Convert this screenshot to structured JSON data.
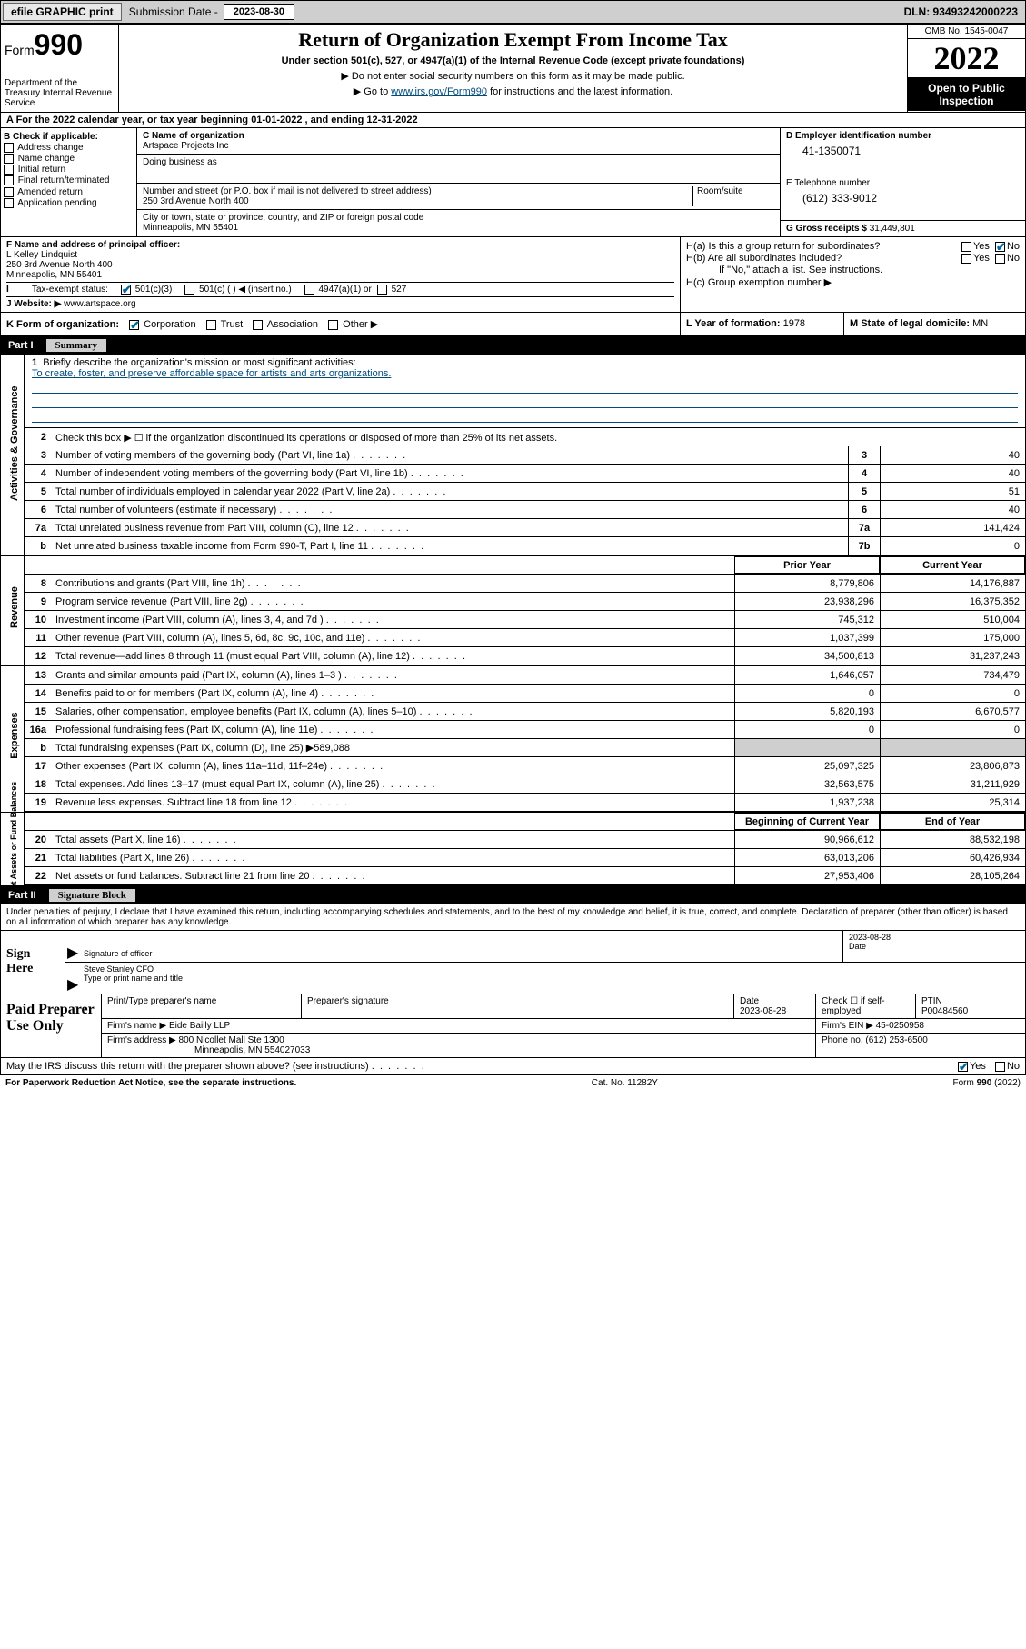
{
  "topbar": {
    "efile": "efile GRAPHIC print",
    "sub_label": "Submission Date -",
    "sub_date": "2023-08-30",
    "dln": "DLN: 93493242000223"
  },
  "header": {
    "form_label": "Form",
    "form_num": "990",
    "dept": "Department of the Treasury Internal Revenue Service",
    "title": "Return of Organization Exempt From Income Tax",
    "subtitle": "Under section 501(c), 527, or 4947(a)(1) of the Internal Revenue Code (except private foundations)",
    "note1": "▶ Do not enter social security numbers on this form as it may be made public.",
    "note2_pre": "▶ Go to ",
    "note2_link": "www.irs.gov/Form990",
    "note2_post": " for instructions and the latest information.",
    "omb": "OMB No. 1545-0047",
    "year": "2022",
    "open": "Open to Public Inspection"
  },
  "row_a": "A For the 2022 calendar year, or tax year beginning 01-01-2022   , and ending 12-31-2022",
  "b": {
    "hdr": "B Check if applicable:",
    "items": [
      "Address change",
      "Name change",
      "Initial return",
      "Final return/terminated",
      "Amended return",
      "Application pending"
    ]
  },
  "c": {
    "label": "C Name of organization",
    "name": "Artspace Projects Inc",
    "dba_label": "Doing business as",
    "addr_label": "Number and street (or P.O. box if mail is not delivered to street address)",
    "room_label": "Room/suite",
    "addr": "250 3rd Avenue North 400",
    "city_label": "City or town, state or province, country, and ZIP or foreign postal code",
    "city": "Minneapolis, MN  55401"
  },
  "d": {
    "label": "D Employer identification number",
    "val": "41-1350071"
  },
  "e": {
    "label": "E Telephone number",
    "val": "(612) 333-9012"
  },
  "g": {
    "label": "G Gross receipts $",
    "val": "31,449,801"
  },
  "f": {
    "label": "F Name and address of principal officer:",
    "name": "L Kelley Lindquist",
    "addr1": "250 3rd Avenue North 400",
    "addr2": "Minneapolis, MN  55401"
  },
  "h": {
    "a_label": "H(a)  Is this a group return for subordinates?",
    "b_label": "H(b)  Are all subordinates included?",
    "b_note": "If \"No,\" attach a list. See instructions.",
    "c_label": "H(c)  Group exemption number ▶"
  },
  "i": {
    "label": "I   Tax-exempt status:",
    "opts": [
      "501(c)(3)",
      "501(c) (  ) ◀ (insert no.)",
      "4947(a)(1) or",
      "527"
    ]
  },
  "j": {
    "label": "J   Website: ▶",
    "val": "www.artspace.org"
  },
  "k": {
    "label": "K Form of organization:",
    "opts": [
      "Corporation",
      "Trust",
      "Association",
      "Other ▶"
    ]
  },
  "l": {
    "label": "L Year of formation:",
    "val": "1978"
  },
  "m": {
    "label": "M State of legal domicile:",
    "val": "MN"
  },
  "parts": {
    "p1_num": "Part I",
    "p1_title": "Summary",
    "p2_num": "Part II",
    "p2_title": "Signature Block"
  },
  "vtabs": {
    "ag": "Activities & Governance",
    "rev": "Revenue",
    "exp": "Expenses",
    "na": "Net Assets or Fund Balances"
  },
  "s1": {
    "q1": "Briefly describe the organization's mission or most significant activities:",
    "mission": "To create, foster, and preserve affordable space for artists and arts organizations.",
    "q2": "Check this box ▶ ☐  if the organization discontinued its operations or disposed of more than 25% of its net assets.",
    "lines": [
      {
        "n": "3",
        "d": "Number of voting members of the governing body (Part VI, line 1a)",
        "b": "3",
        "v": "40"
      },
      {
        "n": "4",
        "d": "Number of independent voting members of the governing body (Part VI, line 1b)",
        "b": "4",
        "v": "40"
      },
      {
        "n": "5",
        "d": "Total number of individuals employed in calendar year 2022 (Part V, line 2a)",
        "b": "5",
        "v": "51"
      },
      {
        "n": "6",
        "d": "Total number of volunteers (estimate if necessary)",
        "b": "6",
        "v": "40"
      },
      {
        "n": "7a",
        "d": "Total unrelated business revenue from Part VIII, column (C), line 12",
        "b": "7a",
        "v": "141,424"
      },
      {
        "n": "b",
        "d": "Net unrelated business taxable income from Form 990-T, Part I, line 11",
        "b": "7b",
        "v": "0"
      }
    ],
    "col_prior": "Prior Year",
    "col_curr": "Current Year",
    "rev": [
      {
        "n": "8",
        "d": "Contributions and grants (Part VIII, line 1h)",
        "p": "8,779,806",
        "c": "14,176,887"
      },
      {
        "n": "9",
        "d": "Program service revenue (Part VIII, line 2g)",
        "p": "23,938,296",
        "c": "16,375,352"
      },
      {
        "n": "10",
        "d": "Investment income (Part VIII, column (A), lines 3, 4, and 7d )",
        "p": "745,312",
        "c": "510,004"
      },
      {
        "n": "11",
        "d": "Other revenue (Part VIII, column (A), lines 5, 6d, 8c, 9c, 10c, and 11e)",
        "p": "1,037,399",
        "c": "175,000"
      },
      {
        "n": "12",
        "d": "Total revenue—add lines 8 through 11 (must equal Part VIII, column (A), line 12)",
        "p": "34,500,813",
        "c": "31,237,243"
      }
    ],
    "exp": [
      {
        "n": "13",
        "d": "Grants and similar amounts paid (Part IX, column (A), lines 1–3 )",
        "p": "1,646,057",
        "c": "734,479"
      },
      {
        "n": "14",
        "d": "Benefits paid to or for members (Part IX, column (A), line 4)",
        "p": "0",
        "c": "0"
      },
      {
        "n": "15",
        "d": "Salaries, other compensation, employee benefits (Part IX, column (A), lines 5–10)",
        "p": "5,820,193",
        "c": "6,670,577"
      },
      {
        "n": "16a",
        "d": "Professional fundraising fees (Part IX, column (A), line 11e)",
        "p": "0",
        "c": "0"
      }
    ],
    "l16b_pre": "Total fundraising expenses (Part IX, column (D), line 25) ▶",
    "l16b_val": "589,088",
    "exp2": [
      {
        "n": "17",
        "d": "Other expenses (Part IX, column (A), lines 11a–11d, 11f–24e)",
        "p": "25,097,325",
        "c": "23,806,873"
      },
      {
        "n": "18",
        "d": "Total expenses. Add lines 13–17 (must equal Part IX, column (A), line 25)",
        "p": "32,563,575",
        "c": "31,211,929"
      },
      {
        "n": "19",
        "d": "Revenue less expenses. Subtract line 18 from line 12",
        "p": "1,937,238",
        "c": "25,314"
      }
    ],
    "col_beg": "Beginning of Current Year",
    "col_end": "End of Year",
    "na": [
      {
        "n": "20",
        "d": "Total assets (Part X, line 16)",
        "p": "90,966,612",
        "c": "88,532,198"
      },
      {
        "n": "21",
        "d": "Total liabilities (Part X, line 26)",
        "p": "63,013,206",
        "c": "60,426,934"
      },
      {
        "n": "22",
        "d": "Net assets or fund balances. Subtract line 21 from line 20",
        "p": "27,953,406",
        "c": "28,105,264"
      }
    ]
  },
  "sig": {
    "intro": "Under penalties of perjury, I declare that I have examined this return, including accompanying schedules and statements, and to the best of my knowledge and belief, it is true, correct, and complete. Declaration of preparer (other than officer) is based on all information of which preparer has any knowledge.",
    "here": "Sign Here",
    "sig_label": "Signature of officer",
    "date_label": "Date",
    "date_val": "2023-08-28",
    "name": "Steve Stanley  CFO",
    "name_label": "Type or print name and title"
  },
  "prep": {
    "title": "Paid Preparer Use Only",
    "ptname_label": "Print/Type preparer's name",
    "psig_label": "Preparer's signature",
    "pdate_label": "Date",
    "pdate": "2023-08-28",
    "check_label": "Check ☐ if self-employed",
    "ptin_label": "PTIN",
    "ptin": "P00484560",
    "firm_name_label": "Firm's name    ▶",
    "firm_name": "Eide Bailly LLP",
    "firm_ein_label": "Firm's EIN ▶",
    "firm_ein": "45-0250958",
    "firm_addr_label": "Firm's address ▶",
    "firm_addr1": "800 Nicollet Mall Ste 1300",
    "firm_addr2": "Minneapolis, MN  554027033",
    "phone_label": "Phone no.",
    "phone": "(612) 253-6500"
  },
  "discuss": "May the IRS discuss this return with the preparer shown above? (see instructions)",
  "footer": {
    "l": "For Paperwork Reduction Act Notice, see the separate instructions.",
    "c": "Cat. No. 11282Y",
    "r": "Form 990 (2022)"
  },
  "yesno": {
    "yes": "Yes",
    "no": "No"
  }
}
